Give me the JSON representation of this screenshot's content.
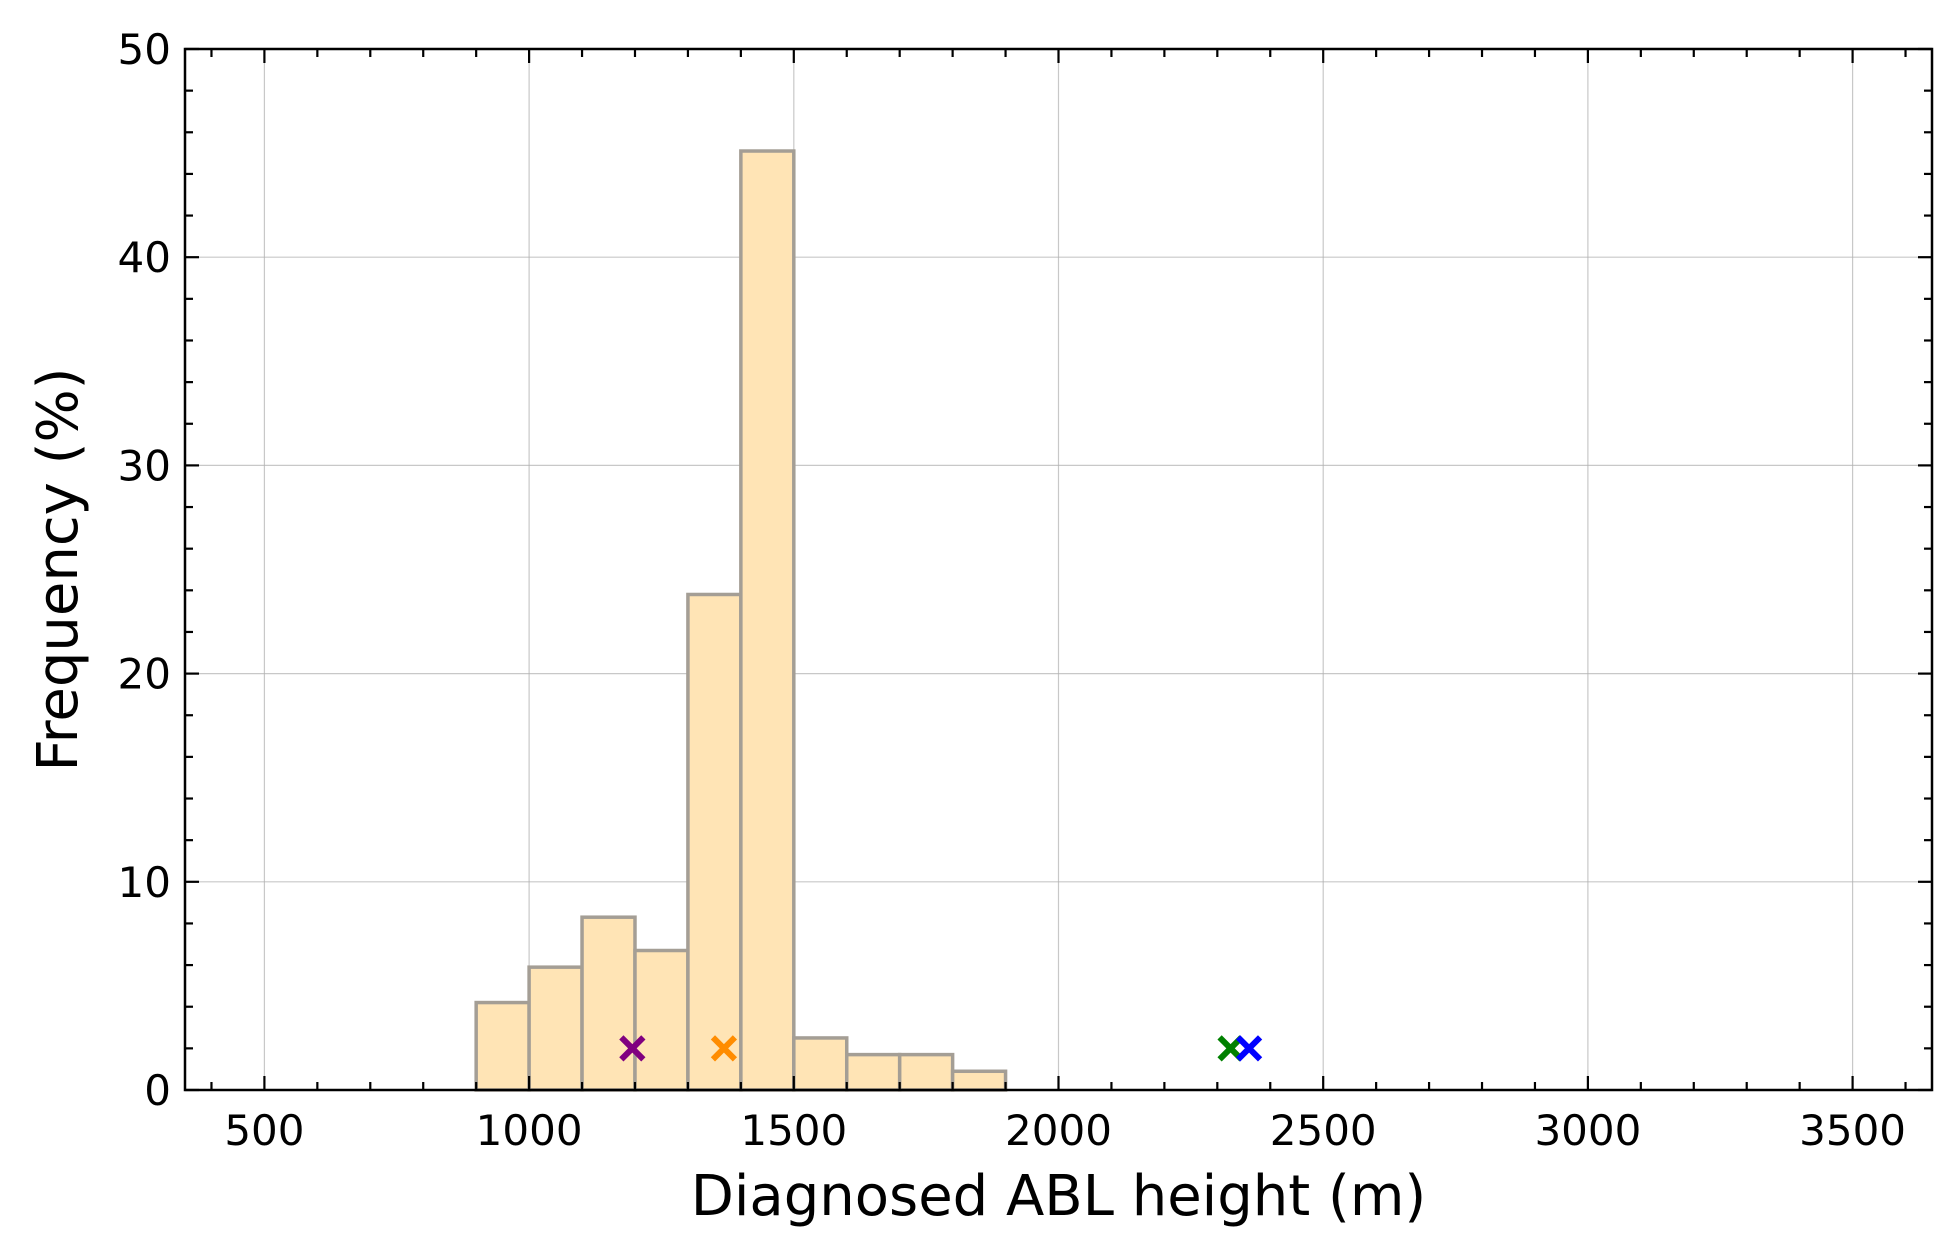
{
  "chart_data": {
    "type": "bar",
    "xlabel": "Diagnosed ABL height (m)",
    "ylabel": "Frequency (%)",
    "xlim": [
      350,
      3650
    ],
    "ylim": [
      0,
      50
    ],
    "x_ticks": [
      500,
      1000,
      1500,
      2000,
      2500,
      3000,
      3500
    ],
    "y_ticks": [
      0,
      10,
      20,
      30,
      40,
      50
    ],
    "grid": true,
    "bar_fill": "#ffe4b5",
    "bar_edge": "#a49e95",
    "bins": [
      {
        "start": 900,
        "end": 1000,
        "value": 4.2
      },
      {
        "start": 1000,
        "end": 1100,
        "value": 5.9
      },
      {
        "start": 1100,
        "end": 1200,
        "value": 8.3
      },
      {
        "start": 1200,
        "end": 1300,
        "value": 6.7
      },
      {
        "start": 1300,
        "end": 1400,
        "value": 23.8
      },
      {
        "start": 1400,
        "end": 1500,
        "value": 45.1
      },
      {
        "start": 1500,
        "end": 1600,
        "value": 2.5
      },
      {
        "start": 1600,
        "end": 1700,
        "value": 1.7
      },
      {
        "start": 1700,
        "end": 1800,
        "value": 1.7
      },
      {
        "start": 1800,
        "end": 1900,
        "value": 0.9
      }
    ],
    "markers": [
      {
        "x": 1195,
        "y": 2.0,
        "color": "#800080"
      },
      {
        "x": 1368,
        "y": 2.0,
        "color": "#ff8c00"
      },
      {
        "x": 2325,
        "y": 2.0,
        "color": "#008000"
      },
      {
        "x": 2360,
        "y": 2.0,
        "color": "#0000ff"
      }
    ]
  }
}
